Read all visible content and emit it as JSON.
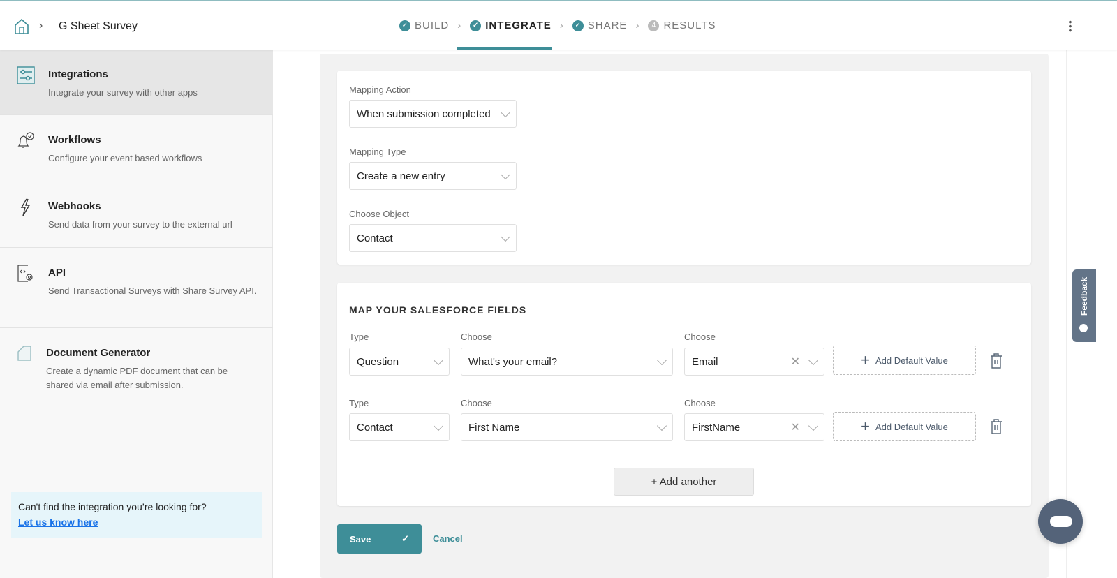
{
  "header": {
    "title": "G Sheet Survey",
    "steps": [
      {
        "label": "BUILD",
        "state": "done"
      },
      {
        "label": "INTEGRATE",
        "state": "active"
      },
      {
        "label": "SHARE",
        "state": "done"
      },
      {
        "label": "RESULTS",
        "state": "pending",
        "number": "4"
      }
    ]
  },
  "sidebar": {
    "items": [
      {
        "title": "Integrations",
        "desc": "Integrate your survey with other apps",
        "icon": "sliders-icon"
      },
      {
        "title": "Workflows",
        "desc": "Configure your event based workflows",
        "icon": "bell-check-icon"
      },
      {
        "title": "Webhooks",
        "desc": "Send data from your survey to the external url",
        "icon": "lightning-icon"
      },
      {
        "title": "API",
        "desc": "Send Transactional Surveys with Share Survey API.",
        "icon": "code-gear-icon"
      },
      {
        "title": "Document Generator",
        "desc": "Create a dynamic PDF document that can be shared via email after submission.",
        "icon": "document-icon"
      }
    ],
    "callout": {
      "text": "Can't find the integration you’re looking for?",
      "link": "Let us know here"
    }
  },
  "mapping": {
    "action": {
      "label": "Mapping Action",
      "value": "When submission completed"
    },
    "type": {
      "label": "Mapping Type",
      "value": "Create a new entry"
    },
    "object": {
      "label": "Choose Object",
      "value": "Contact"
    }
  },
  "fields": {
    "title": "MAP YOUR SALESFORCE FIELDS",
    "rows": [
      {
        "type_label": "Type",
        "type": "Question",
        "choose_label": "Choose",
        "choose": "What's your email?",
        "target_label": "Choose",
        "target": "Email",
        "add_default": "Add Default Value"
      },
      {
        "type_label": "Type",
        "type": "Contact",
        "choose_label": "Choose",
        "choose": "First Name",
        "target_label": "Choose",
        "target": "FirstName",
        "add_default": "Add Default Value"
      }
    ],
    "add_another": "+ Add another"
  },
  "actions": {
    "save": "Save",
    "cancel": "Cancel"
  },
  "feedback": "Feedback",
  "colors": {
    "accent": "#3e8e98",
    "feedback": "#637488"
  }
}
